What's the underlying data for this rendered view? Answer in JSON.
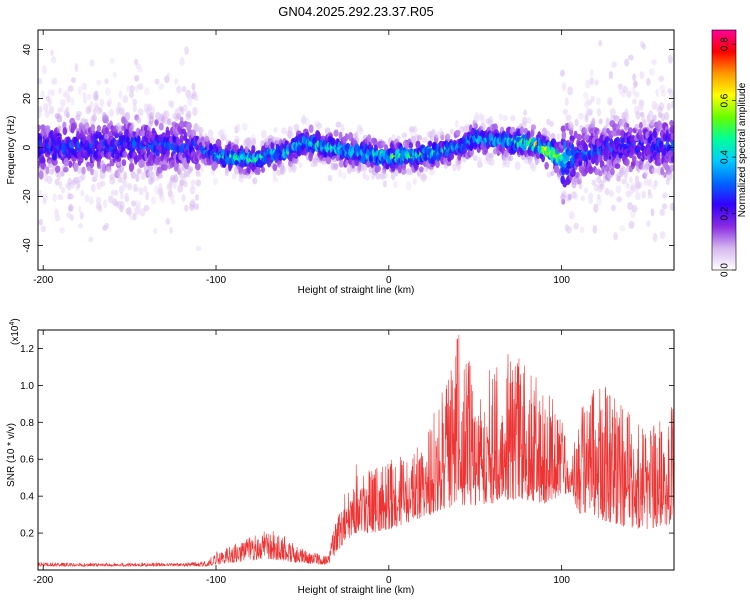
{
  "page": {
    "title": "GN04.2025.292.23.37.R05"
  },
  "chart_data": [
    {
      "type": "heatmap",
      "title": "GN04.2025.292.23.37.R05",
      "xlabel": "Height of straight line (km)",
      "ylabel": "Frequency (Hz)",
      "xlim": [
        -203,
        165
      ],
      "ylim": [
        -50,
        48
      ],
      "xticks": [
        -200,
        -100,
        0,
        100
      ],
      "yticks": [
        -40,
        -20,
        0,
        20,
        40
      ],
      "colorbar": {
        "label": "Normalized spectral amplitude",
        "range": [
          0.0,
          0.85
        ],
        "ticks": [
          0.0,
          0.2,
          0.4,
          0.6,
          0.8
        ],
        "colormap": [
          "#ffffff",
          "#d6b8f0",
          "#8a2be2",
          "#3300ff",
          "#0066ff",
          "#00ccff",
          "#00ff99",
          "#66ff00",
          "#ffff00",
          "#ff9900",
          "#ff0000",
          "#ff0099"
        ]
      },
      "ridge": {
        "description_points_x": [
          -200,
          -150,
          -110,
          -100,
          -80,
          -60,
          -50,
          -40,
          -20,
          0,
          20,
          40,
          50,
          60,
          80,
          90,
          100,
          110,
          130,
          165
        ],
        "center_frequency": [
          0,
          1,
          0,
          -3,
          -5,
          -2,
          2,
          1,
          -2,
          -4,
          -3,
          0,
          4,
          3,
          2,
          0,
          -5,
          -3,
          0,
          1
        ],
        "peak_amplitude": [
          0.3,
          0.3,
          0.3,
          0.45,
          0.5,
          0.45,
          0.45,
          0.5,
          0.5,
          0.55,
          0.5,
          0.45,
          0.5,
          0.45,
          0.55,
          0.7,
          0.55,
          0.3,
          0.3,
          0.3
        ]
      }
    },
    {
      "type": "line",
      "ylabel": "SNR (10 * v/v)",
      "xlabel": "Height of straight line (km)",
      "y_multiplier": "(x10",
      "y_multiplier_exp": "4",
      "y_multiplier_close": ")",
      "xlim": [
        -203,
        165
      ],
      "ylim": [
        0,
        1.3
      ],
      "xticks": [
        -200,
        -100,
        0,
        100
      ],
      "yticks": [
        0.2,
        0.4,
        0.6,
        0.8,
        1.0,
        1.2
      ],
      "color": "#ee3333",
      "envelope": {
        "x": [
          -203,
          -120,
          -105,
          -100,
          -90,
          -70,
          -60,
          -55,
          -45,
          -35,
          -30,
          -25,
          -20,
          -10,
          0,
          10,
          20,
          25,
          30,
          40,
          50,
          60,
          70,
          80,
          90,
          100,
          105,
          110,
          120,
          130,
          140,
          150,
          165
        ],
        "upper": [
          0.04,
          0.04,
          0.05,
          0.1,
          0.14,
          0.22,
          0.2,
          0.14,
          0.1,
          0.08,
          0.32,
          0.45,
          0.6,
          0.55,
          0.6,
          0.62,
          0.7,
          0.85,
          0.95,
          1.3,
          1.05,
          1.15,
          1.2,
          1.1,
          1.0,
          0.85,
          0.55,
          0.9,
          1.0,
          1.0,
          0.85,
          0.75,
          0.9
        ],
        "baseline": [
          0.02,
          0.02,
          0.02,
          0.03,
          0.04,
          0.06,
          0.05,
          0.04,
          0.03,
          0.03,
          0.1,
          0.15,
          0.2,
          0.2,
          0.22,
          0.25,
          0.28,
          0.3,
          0.32,
          0.35,
          0.35,
          0.35,
          0.38,
          0.38,
          0.36,
          0.4,
          0.42,
          0.3,
          0.28,
          0.25,
          0.22,
          0.22,
          0.25
        ]
      }
    }
  ]
}
